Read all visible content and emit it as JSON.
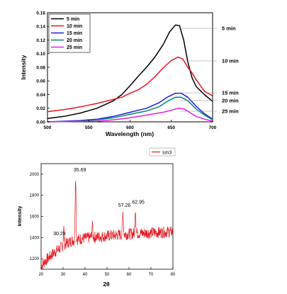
{
  "chart_data": [
    {
      "type": "line",
      "xlabel": "Wavelength (nm)",
      "ylabel": "Intensity",
      "xlim": [
        500,
        700
      ],
      "ylim": [
        0.0,
        0.16
      ],
      "xticks": [
        "500",
        "550",
        "600",
        "650",
        "700"
      ],
      "yticks": [
        "0.00",
        "0.02",
        "0.04",
        "0.06",
        "0.08",
        "0.10",
        "0.12",
        "0.14",
        "0.16"
      ],
      "legend_position": "top-left",
      "colors": {
        "5 min": "#000000",
        "10 min": "#e8141c",
        "15 min": "#1f1fd6",
        "20 min": "#00887a",
        "25 min": "#e020e0"
      },
      "series": [
        {
          "name": "5 min",
          "points": [
            [
              500,
              0.005
            ],
            [
              520,
              0.008
            ],
            [
              540,
              0.013
            ],
            [
              560,
              0.02
            ],
            [
              580,
              0.031
            ],
            [
              590,
              0.04
            ],
            [
              600,
              0.053
            ],
            [
              610,
              0.067
            ],
            [
              620,
              0.08
            ],
            [
              630,
              0.095
            ],
            [
              640,
              0.113
            ],
            [
              648,
              0.132
            ],
            [
              655,
              0.142
            ],
            [
              660,
              0.141
            ],
            [
              665,
              0.12
            ],
            [
              670,
              0.088
            ],
            [
              675,
              0.065
            ],
            [
              680,
              0.052
            ],
            [
              690,
              0.04
            ],
            [
              700,
              0.03
            ]
          ]
        },
        {
          "name": "10 min",
          "points": [
            [
              500,
              0.015
            ],
            [
              520,
              0.018
            ],
            [
              540,
              0.022
            ],
            [
              560,
              0.027
            ],
            [
              580,
              0.033
            ],
            [
              590,
              0.036
            ],
            [
              600,
              0.042
            ],
            [
              610,
              0.047
            ],
            [
              620,
              0.055
            ],
            [
              630,
              0.066
            ],
            [
              640,
              0.079
            ],
            [
              650,
              0.09
            ],
            [
              658,
              0.095
            ],
            [
              664,
              0.092
            ],
            [
              670,
              0.08
            ],
            [
              675,
              0.072
            ],
            [
              680,
              0.062
            ],
            [
              690,
              0.045
            ],
            [
              700,
              0.038
            ]
          ]
        },
        {
          "name": "15 min",
          "points": [
            [
              500,
              0.0
            ],
            [
              540,
              0.002
            ],
            [
              560,
              0.004
            ],
            [
              580,
              0.008
            ],
            [
              600,
              0.014
            ],
            [
              620,
              0.02
            ],
            [
              635,
              0.028
            ],
            [
              645,
              0.036
            ],
            [
              655,
              0.042
            ],
            [
              662,
              0.042
            ],
            [
              670,
              0.036
            ],
            [
              680,
              0.023
            ],
            [
              690,
              0.012
            ],
            [
              700,
              0.004
            ]
          ]
        },
        {
          "name": "20 min",
          "points": [
            [
              500,
              0.0
            ],
            [
              540,
              0.001
            ],
            [
              560,
              0.003
            ],
            [
              580,
              0.006
            ],
            [
              600,
              0.011
            ],
            [
              620,
              0.016
            ],
            [
              635,
              0.022
            ],
            [
              645,
              0.03
            ],
            [
              655,
              0.036
            ],
            [
              662,
              0.036
            ],
            [
              670,
              0.031
            ],
            [
              680,
              0.019
            ],
            [
              690,
              0.01
            ],
            [
              700,
              0.003
            ]
          ]
        },
        {
          "name": "25 min",
          "points": [
            [
              500,
              0.0
            ],
            [
              560,
              0.001
            ],
            [
              580,
              0.003
            ],
            [
              600,
              0.006
            ],
            [
              620,
              0.01
            ],
            [
              640,
              0.014
            ],
            [
              650,
              0.017
            ],
            [
              658,
              0.02
            ],
            [
              665,
              0.019
            ],
            [
              672,
              0.014
            ],
            [
              680,
              0.008
            ],
            [
              690,
              0.004
            ],
            [
              700,
              0.001
            ]
          ]
        }
      ],
      "annotations": [
        "5 min",
        "10 min",
        "15 min",
        "20 min",
        "25 min"
      ]
    },
    {
      "type": "line",
      "xlabel": "2θ",
      "ylabel": "Intensity",
      "xlim": [
        20,
        80
      ],
      "ylim": [
        1100,
        2100
      ],
      "xticks": [
        "20",
        "30",
        "40",
        "50",
        "60",
        "70",
        "80"
      ],
      "yticks": [
        "1200",
        "1400",
        "1600",
        "1800",
        "2000"
      ],
      "legend_position": "top-right",
      "color": "#e8141c",
      "series": [
        {
          "name": "sm3",
          "baseline": [
            [
              20,
              1130
            ],
            [
              22,
              1180
            ],
            [
              24,
              1220
            ],
            [
              26,
              1260
            ],
            [
              28,
              1290
            ],
            [
              30,
              1320
            ],
            [
              32,
              1350
            ],
            [
              34,
              1370
            ],
            [
              36,
              1380
            ],
            [
              40,
              1395
            ],
            [
              45,
              1405
            ],
            [
              50,
              1415
            ],
            [
              55,
              1425
            ],
            [
              60,
              1435
            ],
            [
              65,
              1440
            ],
            [
              70,
              1445
            ],
            [
              75,
              1450
            ],
            [
              80,
              1455
            ]
          ],
          "noise_amplitude": 55,
          "peaks": [
            [
              30.29,
              1490
            ],
            [
              35.69,
              2000
            ],
            [
              43.3,
              1520
            ],
            [
              57.26,
              1650
            ],
            [
              62.95,
              1680
            ]
          ]
        }
      ],
      "peak_labels": [
        "30.29",
        "35.69",
        "57.26",
        "62.95"
      ],
      "legend_label": "sm3"
    }
  ]
}
